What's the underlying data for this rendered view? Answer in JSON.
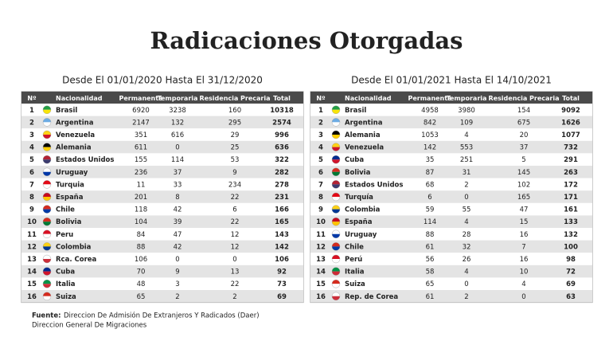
{
  "title": "Radicaciones Otorgadas",
  "tables": [
    {
      "subtitle": "Desde El 01/01/2020 Hasta El 31/12/2020",
      "headers": [
        "Nº",
        "Nacionalidad",
        "Permanente",
        "Temporaria",
        "Residencia Precaria",
        "Total"
      ],
      "rows": [
        [
          1,
          "Brasil",
          6920,
          3238,
          160,
          10318
        ],
        [
          2,
          "Argentina",
          2147,
          132,
          295,
          2574
        ],
        [
          3,
          "Venezuela",
          351,
          616,
          29,
          996
        ],
        [
          4,
          "Alemania",
          611,
          0,
          25,
          636
        ],
        [
          5,
          "Estados Unidos",
          155,
          114,
          53,
          322
        ],
        [
          6,
          "Uruguay",
          236,
          37,
          9,
          282
        ],
        [
          7,
          "Turquia",
          11,
          33,
          234,
          278
        ],
        [
          8,
          "España",
          201,
          8,
          22,
          231
        ],
        [
          9,
          "Chile",
          118,
          42,
          6,
          166
        ],
        [
          10,
          "Bolivia",
          104,
          39,
          22,
          165
        ],
        [
          11,
          "Peru",
          84,
          47,
          12,
          143
        ],
        [
          12,
          "Colombia",
          88,
          42,
          12,
          142
        ],
        [
          13,
          "Rca. Corea",
          106,
          0,
          0,
          106
        ],
        [
          14,
          "Cuba",
          70,
          9,
          13,
          92
        ],
        [
          15,
          "Italia",
          48,
          3,
          22,
          73
        ],
        [
          16,
          "Suiza",
          65,
          2,
          2,
          69
        ]
      ]
    },
    {
      "subtitle": "Desde El 01/01/2021 Hasta El 14/10/2021",
      "headers": [
        "Nº",
        "Nacionalidad",
        "Permanente",
        "Temporaria",
        "Residencia Precaria",
        "Total"
      ],
      "rows": [
        [
          1,
          "Brasil",
          4958,
          3980,
          154,
          9092
        ],
        [
          2,
          "Argentina",
          842,
          109,
          675,
          1626
        ],
        [
          3,
          "Alemania",
          1053,
          4,
          20,
          1077
        ],
        [
          4,
          "Venezuela",
          142,
          553,
          37,
          732
        ],
        [
          5,
          "Cuba",
          35,
          251,
          5,
          291
        ],
        [
          6,
          "Bolivia",
          87,
          31,
          145,
          263
        ],
        [
          7,
          "Estados Unidos",
          68,
          2,
          102,
          172
        ],
        [
          8,
          "Turquía",
          6,
          0,
          165,
          171
        ],
        [
          9,
          "Colombia",
          59,
          55,
          47,
          161
        ],
        [
          10,
          "España",
          114,
          4,
          15,
          133
        ],
        [
          11,
          "Uruguay",
          88,
          28,
          16,
          132
        ],
        [
          12,
          "Chile",
          61,
          32,
          7,
          100
        ],
        [
          13,
          "Perú",
          56,
          26,
          16,
          98
        ],
        [
          14,
          "Italia",
          58,
          4,
          10,
          72
        ],
        [
          15,
          "Suiza",
          65,
          0,
          4,
          69
        ],
        [
          16,
          "Rep. de Corea",
          61,
          2,
          0,
          63
        ]
      ]
    }
  ],
  "source": {
    "label": "Fuente:",
    "lines": [
      "Direccion De Admisión De Extranjeros Y Radicados (Daer)",
      "Direccion General De Migraciones"
    ]
  }
}
